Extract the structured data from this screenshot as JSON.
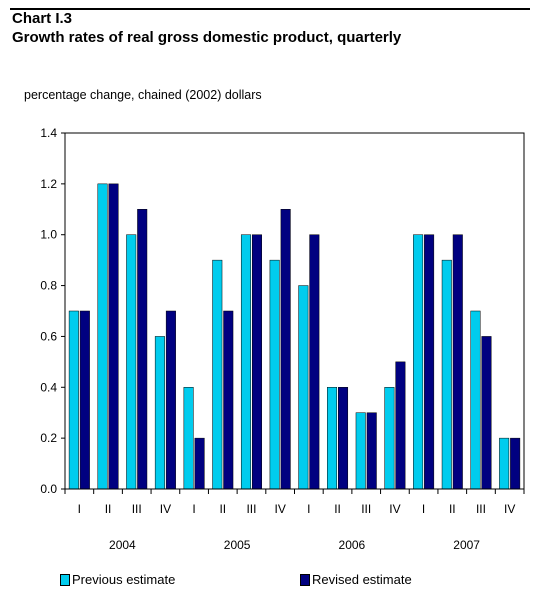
{
  "header": {
    "chart_number": "Chart I.3",
    "title": "Growth rates of real gross domestic product, quarterly",
    "unit_label": "percentage change, chained (2002) dollars"
  },
  "colors": {
    "previous": "#00ccee",
    "revised": "#000080",
    "axis": "#000000",
    "rule": "#000000"
  },
  "chart_data": {
    "type": "bar",
    "title": "Growth rates of real gross domestic product, quarterly",
    "ylabel": "percentage change, chained (2002) dollars",
    "xlabel": "",
    "ylim": [
      0.0,
      1.4
    ],
    "yticks": [
      "0.0",
      "0.2",
      "0.4",
      "0.6",
      "0.8",
      "1.0",
      "1.2",
      "1.4"
    ],
    "grid": false,
    "legend_position": "bottom",
    "categories": [
      "I",
      "II",
      "III",
      "IV",
      "I",
      "II",
      "III",
      "IV",
      "I",
      "II",
      "III",
      "IV",
      "I",
      "II",
      "III",
      "IV"
    ],
    "years": [
      "2004",
      "2005",
      "2006",
      "2007"
    ],
    "series": [
      {
        "name": "Previous estimate",
        "values": [
          0.7,
          1.2,
          1.0,
          0.6,
          0.4,
          0.9,
          1.0,
          0.9,
          0.8,
          0.4,
          0.3,
          0.4,
          1.0,
          0.9,
          0.7,
          0.2
        ]
      },
      {
        "name": "Revised estimate",
        "values": [
          0.7,
          1.2,
          1.1,
          0.7,
          0.2,
          0.7,
          1.0,
          1.1,
          1.0,
          0.4,
          0.3,
          0.5,
          1.0,
          1.0,
          0.6,
          0.2
        ]
      }
    ]
  }
}
